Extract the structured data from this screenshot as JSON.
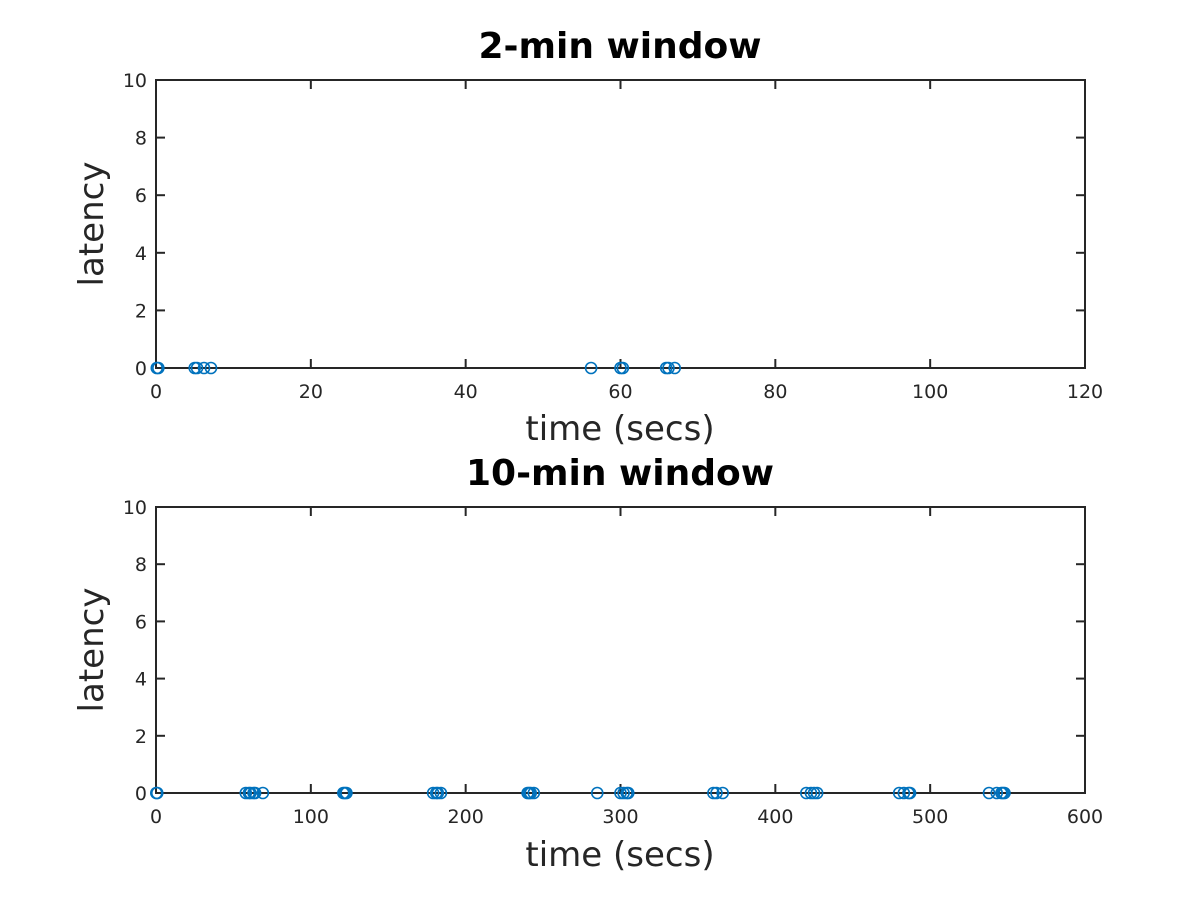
{
  "chart_data": [
    {
      "type": "scatter",
      "title": "2-min window",
      "xlabel": "time (secs)",
      "ylabel": "latency",
      "xlim": [
        0,
        120
      ],
      "ylim": [
        0,
        10
      ],
      "xticks": [
        0,
        20,
        40,
        60,
        80,
        100,
        120
      ],
      "yticks": [
        0,
        2,
        4,
        6,
        8,
        10
      ],
      "grid": false,
      "marker": "circle",
      "color": "#0072BD",
      "series": [
        {
          "x": [
            0.1,
            0.3,
            5.0,
            5.3,
            6.2,
            7.1,
            56.2,
            60.0,
            60.3,
            65.9,
            66.2,
            67.0
          ],
          "y": [
            0,
            0,
            0,
            0,
            0,
            0,
            0,
            0,
            0,
            0,
            0,
            0
          ]
        }
      ]
    },
    {
      "type": "scatter",
      "title": "10-min window",
      "xlabel": "time (secs)",
      "ylabel": "latency",
      "xlim": [
        0,
        600
      ],
      "ylim": [
        0,
        10
      ],
      "xticks": [
        0,
        100,
        200,
        300,
        400,
        500,
        600
      ],
      "yticks": [
        0,
        2,
        4,
        6,
        8,
        10
      ],
      "grid": false,
      "marker": "circle",
      "color": "#0072BD",
      "series": [
        {
          "x": [
            0.2,
            0.8,
            58,
            60,
            61,
            63,
            64,
            69,
            121,
            122,
            123,
            179,
            181,
            182,
            184,
            240,
            241,
            242,
            244,
            285,
            300,
            302,
            304,
            305,
            360,
            362,
            366,
            420,
            423,
            425,
            427,
            480,
            483,
            486,
            487,
            538,
            543,
            546,
            547,
            548
          ],
          "y": [
            0,
            0,
            0,
            0,
            0,
            0,
            0,
            0,
            0,
            0,
            0,
            0,
            0,
            0,
            0,
            0,
            0,
            0,
            0,
            0,
            0,
            0,
            0,
            0,
            0,
            0,
            0,
            0,
            0,
            0,
            0,
            0,
            0,
            0,
            0,
            0,
            0,
            0,
            0,
            0
          ]
        }
      ]
    }
  ]
}
